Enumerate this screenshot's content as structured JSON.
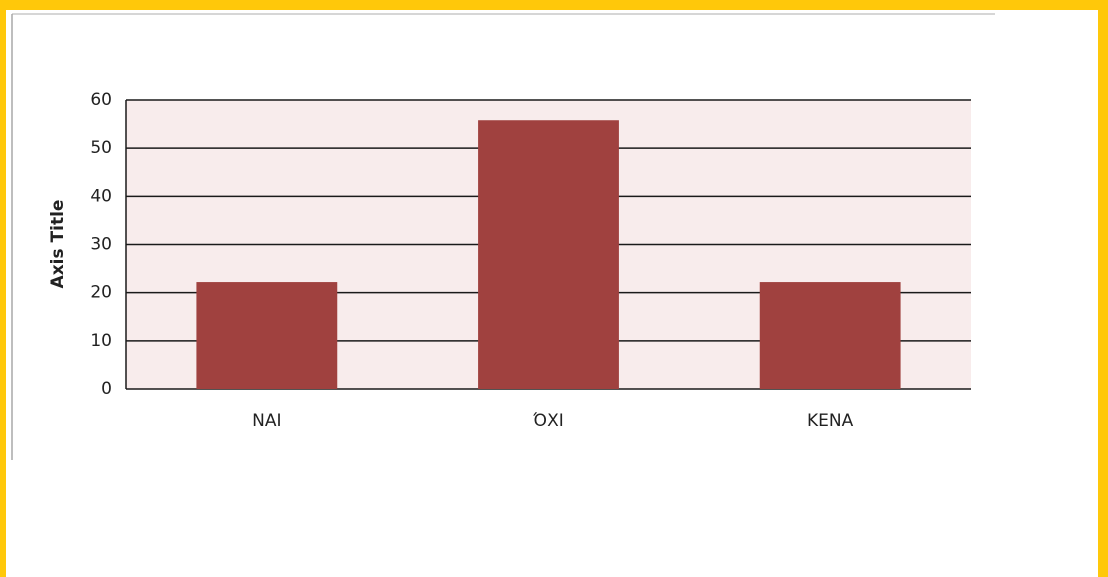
{
  "chart_data": {
    "type": "bar",
    "y_label": "Axis Title",
    "categories": [
      "ΝΑΙ",
      "ΌΧΙ",
      "ΚΕΝΑ"
    ],
    "values": [
      22.2,
      55.8,
      22.2
    ],
    "color": "#a0413f",
    "ylim": [
      0,
      60
    ],
    "yticks": [
      0,
      10,
      20,
      30,
      40,
      50,
      60
    ],
    "grid": true
  }
}
